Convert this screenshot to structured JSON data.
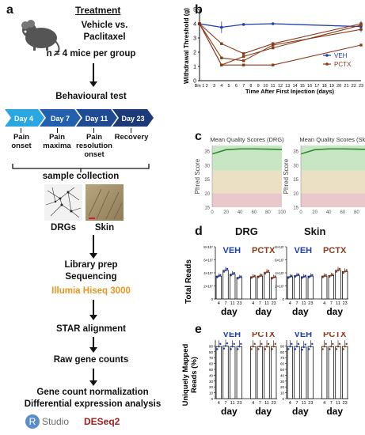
{
  "panel_a": {
    "letter": "a",
    "treatment_title": "Treatment",
    "treatment_line1": "Vehicle vs.",
    "treatment_line2": "Paclitaxel",
    "mice": "n = 4 mice per group",
    "behaviour": "Behavioural test",
    "chevrons": [
      {
        "label": "Day 4",
        "color": "#2a9fd8"
      },
      {
        "label": "Day 7",
        "color": "#1f5fa8"
      },
      {
        "label": "Day 11",
        "color": "#1f4f94"
      },
      {
        "label": "Day 23",
        "color": "#1c3e7c"
      }
    ],
    "timeline_labels": [
      "Pain onset",
      "Pain maxima",
      "Pain resolution onset",
      "Recovery"
    ],
    "sample_collection": "sample collection",
    "drgs": "DRGs",
    "skin": "Skin",
    "library": "Library prep",
    "sequencing": "Sequencing",
    "illumina": "Illumia Hiseq 3000",
    "illumina_color": "#e8961e",
    "star": "STAR alignment",
    "raw": "Raw gene counts",
    "norm": "Gene count normalization",
    "diff": "Differential expression analysis",
    "rstudio_R": "R",
    "rstudio": "Studio",
    "deseq": "DESeq2",
    "deseq_color": "#a02020"
  },
  "panel_b": {
    "letter": "b",
    "chart_data": {
      "type": "line",
      "ylabel": "Withdrawal Threshold (g)",
      "xlabel": "Time After First Injection (days)",
      "categories": [
        "Bln 1",
        "2",
        "3",
        "4",
        "5",
        "6",
        "7",
        "8",
        "9",
        "10",
        "11",
        "12",
        "13",
        "14",
        "15",
        "16",
        "17",
        "18",
        "19",
        "20",
        "21",
        "22",
        "23"
      ],
      "ylim": [
        0,
        5
      ],
      "yticks": [
        0,
        1,
        2,
        3,
        4,
        5
      ],
      "series": [
        {
          "name": "VEH",
          "color": "#1f3fb0",
          "x": [
            1,
            4,
            7,
            11,
            23
          ],
          "values": [
            4.0,
            3.75,
            3.95,
            4.0,
            3.8
          ]
        },
        {
          "name": "PCTX",
          "color": "#8b3a1a",
          "x": [
            1,
            4,
            7,
            11,
            23
          ],
          "values": [
            4.0,
            1.1,
            1.1,
            1.1,
            2.5
          ]
        },
        {
          "name": "",
          "color": "#8b3a1a",
          "x": [
            1,
            4,
            7,
            11,
            23
          ],
          "values": [
            4.0,
            1.6,
            1.4,
            2.5,
            3.6
          ]
        },
        {
          "name": "",
          "color": "#8b3a1a",
          "x": [
            1,
            4,
            7,
            11,
            23
          ],
          "values": [
            4.0,
            2.6,
            1.9,
            2.6,
            4.0
          ]
        },
        {
          "name": "",
          "color": "#8b3a1a",
          "x": [
            1,
            4,
            7,
            11,
            23
          ],
          "values": [
            4.0,
            1.1,
            1.7,
            2.3,
            3.9
          ]
        }
      ],
      "legend": [
        "VEH",
        "PCTX"
      ]
    }
  },
  "panel_c": {
    "letter": "c",
    "charts": [
      {
        "title": "Mean Quality Scores (DRG)",
        "ylabel": "Phred Score"
      },
      {
        "title": "Mean Quality Scores (Skin)",
        "ylabel": "Phred Score"
      }
    ],
    "chart_data": [
      {
        "type": "line",
        "title": "Mean Quality Scores (DRG)",
        "ylabel": "Phred Score",
        "xlabel": "",
        "xlim": [
          0,
          100
        ],
        "ylim": [
          15,
          37
        ],
        "xticks": [
          0,
          20,
          40,
          60,
          80,
          100
        ],
        "yticks": [
          15,
          20,
          25,
          30,
          35
        ],
        "series": [
          {
            "values": [
              34,
              35.5,
              35.8,
              35.8,
              35.7,
              35.6
            ]
          }
        ]
      },
      {
        "type": "line",
        "title": "Mean Quality Scores (Skin)",
        "ylabel": "Phred Score",
        "xlabel": "",
        "xlim": [
          0,
          100
        ],
        "ylim": [
          15,
          37
        ],
        "xticks": [
          0,
          20,
          40,
          60,
          80,
          100
        ],
        "yticks": [
          15,
          20,
          25,
          30,
          35
        ],
        "series": [
          {
            "values": [
              34,
              35.5,
              35.8,
              35.8,
              35.7,
              35.6
            ]
          }
        ]
      }
    ]
  },
  "panel_d": {
    "letter": "d",
    "drg": "DRG",
    "skin": "Skin",
    "ylabel": "Total Reads",
    "veh": "VEH",
    "pctx": "PCTX",
    "day": "day",
    "chart_data": [
      {
        "type": "bar",
        "title": "DRG",
        "categories": [
          "4",
          "7",
          "11",
          "23",
          "4",
          "7",
          "11",
          "23"
        ],
        "groups": [
          "VEH",
          "PCTX"
        ],
        "yticks": [
          "0",
          "2×10⁷",
          "4×10⁷",
          "6×10⁷",
          "8×10⁷"
        ],
        "ylim": [
          0,
          8
        ],
        "values": [
          3.5,
          4.4,
          3.8,
          3.3,
          3.4,
          3.5,
          4.1,
          3.3
        ]
      },
      {
        "type": "bar",
        "title": "Skin",
        "categories": [
          "4",
          "7",
          "11",
          "23",
          "4",
          "7",
          "11",
          "23"
        ],
        "groups": [
          "VEH",
          "PCTX"
        ],
        "yticks": [
          "0",
          "2×10⁷",
          "4×10⁷",
          "6×10⁷",
          "8×10⁷"
        ],
        "ylim": [
          0,
          8
        ],
        "values": [
          3.4,
          3.6,
          3.4,
          3.5,
          3.5,
          3.6,
          4.4,
          4.2
        ]
      }
    ]
  },
  "panel_e": {
    "letter": "e",
    "ylabel1": "Uniquely Mapped",
    "ylabel2": "Reads (%)",
    "veh": "VEH",
    "pctx": "PCTX",
    "day": "day",
    "chart_data": [
      {
        "type": "bar",
        "title": "DRG",
        "categories": [
          "4",
          "7",
          "11",
          "23",
          "4",
          "7",
          "11",
          "23"
        ],
        "yticks": [
          0,
          10,
          20,
          30,
          40,
          50,
          60,
          70,
          80,
          90
        ],
        "ylim": [
          0,
          100
        ],
        "values": [
          89,
          90,
          89,
          89,
          89,
          89,
          89,
          89
        ]
      },
      {
        "type": "bar",
        "title": "Skin",
        "categories": [
          "4",
          "7",
          "11",
          "23",
          "4",
          "7",
          "11",
          "23"
        ],
        "yticks": [
          0,
          10,
          20,
          30,
          40,
          50,
          60,
          70,
          80,
          90
        ],
        "ylim": [
          0,
          100
        ],
        "values": [
          89,
          89,
          88,
          89,
          89,
          89,
          89,
          89
        ]
      }
    ]
  }
}
